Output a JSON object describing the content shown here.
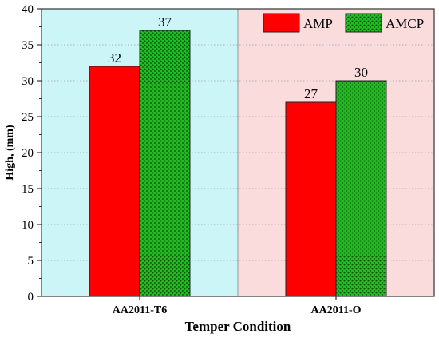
{
  "chart_data": {
    "type": "bar",
    "categories": [
      "AA2011-T6",
      "AA2011-O"
    ],
    "series": [
      {
        "name": "AMP",
        "values": [
          32,
          27
        ],
        "color": "#ff0000",
        "pattern": "solid"
      },
      {
        "name": "AMCP",
        "values": [
          37,
          30
        ],
        "color": "#22bb22",
        "pattern": "dotted"
      }
    ],
    "data_labels": [
      [
        "32",
        "27"
      ],
      [
        "37",
        "30"
      ]
    ],
    "xlabel": "Temper Condition",
    "ylabel": "High, (mm)",
    "ylim": [
      0,
      40
    ],
    "yticks": [
      0,
      5,
      10,
      15,
      20,
      25,
      30,
      35,
      40
    ],
    "background_colors": [
      "#ccf5f8",
      "#fbdcdc"
    ],
    "legend_position": "top-right",
    "grid": "horizontal-dotted"
  }
}
